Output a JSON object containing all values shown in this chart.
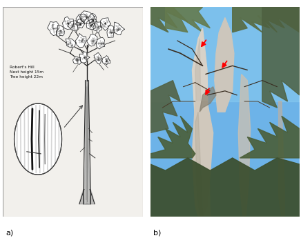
{
  "label_a": "a)",
  "label_b": "b)",
  "label_fontsize": 8,
  "label_color": "#000000",
  "bg_color": "#ffffff",
  "fig_width": 4.36,
  "fig_height": 3.45,
  "dpi": 100,
  "panel_a_bg": "#f2f0ec",
  "annotation_text_a": "Robert's Hill\nNest height 15m\nTree height 22m",
  "annotation_fontsize": 4.2,
  "sky_top": "#7bbfe8",
  "sky_bottom": "#a8d4f0",
  "foliage_dark": "#5a7a48",
  "foliage_mid": "#6b8f55",
  "trunk_color": "#c8bfb0",
  "panel_b_border": "#cccccc"
}
